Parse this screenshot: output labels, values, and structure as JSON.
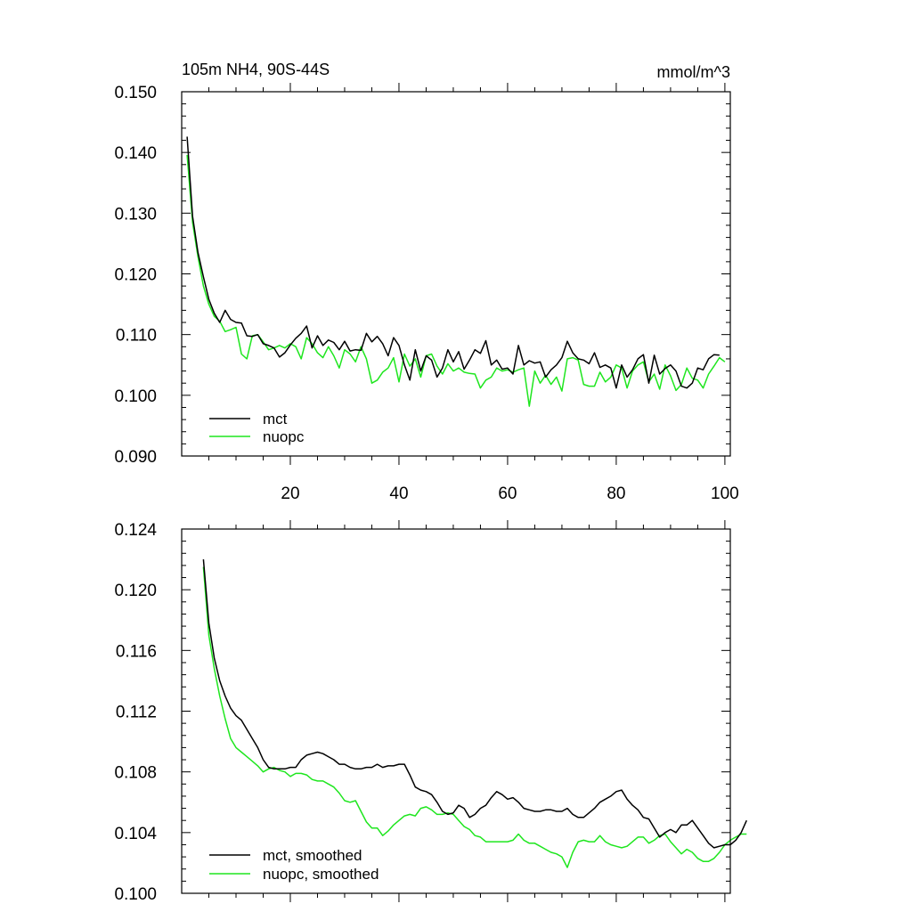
{
  "chart_data": [
    {
      "type": "line",
      "title": "105m NH4, 90S-44S",
      "units": "mmol/m^3",
      "xlabel": "",
      "ylabel": "",
      "xlim": [
        0,
        101
      ],
      "ylim": [
        0.09,
        0.15
      ],
      "xticks": [
        20,
        40,
        60,
        80,
        100
      ],
      "xtick_labels": [
        "20",
        "40",
        "60",
        "80",
        "100"
      ],
      "yticks": [
        0.09,
        0.1,
        0.11,
        0.12,
        0.13,
        0.14,
        0.15
      ],
      "ytick_labels": [
        "0.090",
        "0.100",
        "0.110",
        "0.120",
        "0.130",
        "0.140",
        "0.150"
      ],
      "legend_position": "bottom-left",
      "series": [
        {
          "name": "mct",
          "color": "#000000",
          "x_start": 1,
          "values": [
            0.1426,
            0.1295,
            0.1235,
            0.1195,
            0.1158,
            0.1135,
            0.112,
            0.114,
            0.1125,
            0.112,
            0.1119,
            0.1098,
            0.1097,
            0.11,
            0.1085,
            0.1082,
            0.1078,
            0.1063,
            0.107,
            0.1083,
            0.1094,
            0.1102,
            0.1114,
            0.1078,
            0.1098,
            0.1082,
            0.1091,
            0.1087,
            0.1075,
            0.1089,
            0.1073,
            0.1075,
            0.1074,
            0.1102,
            0.1088,
            0.1097,
            0.1085,
            0.1065,
            0.1095,
            0.1082,
            0.105,
            0.1025,
            0.1075,
            0.104,
            0.1065,
            0.1058,
            0.103,
            0.1045,
            0.1075,
            0.1055,
            0.1072,
            0.1043,
            0.1058,
            0.1075,
            0.1069,
            0.109,
            0.105,
            0.1058,
            0.1043,
            0.1045,
            0.1035,
            0.1082,
            0.105,
            0.1057,
            0.1053,
            0.1055,
            0.103,
            0.1042,
            0.105,
            0.1062,
            0.1089,
            0.107,
            0.106,
            0.1058,
            0.1052,
            0.107,
            0.1046,
            0.105,
            0.1045,
            0.1012,
            0.105,
            0.103,
            0.1042,
            0.106,
            0.1067,
            0.102,
            0.1066,
            0.1035,
            0.1044,
            0.105,
            0.104,
            0.1015,
            0.1012,
            0.102,
            0.1045,
            0.1042,
            0.106,
            0.1067,
            0.1066
          ]
        },
        {
          "name": "nuopc",
          "color": "#1ee61e",
          "x_start": 1,
          "values": [
            0.1396,
            0.1285,
            0.1228,
            0.118,
            0.115,
            0.113,
            0.1122,
            0.1105,
            0.1108,
            0.1112,
            0.1068,
            0.106,
            0.1098,
            0.11,
            0.1088,
            0.1075,
            0.1078,
            0.1082,
            0.1078,
            0.1085,
            0.108,
            0.106,
            0.1095,
            0.1085,
            0.107,
            0.1062,
            0.108,
            0.1065,
            0.1045,
            0.1075,
            0.1068,
            0.1055,
            0.108,
            0.106,
            0.102,
            0.1025,
            0.1038,
            0.1045,
            0.1062,
            0.1022,
            0.1068,
            0.1048,
            0.106,
            0.103,
            0.1065,
            0.1068,
            0.1048,
            0.1035,
            0.1052,
            0.104,
            0.1045,
            0.1038,
            0.1036,
            0.1035,
            0.1012,
            0.1025,
            0.103,
            0.1045,
            0.104,
            0.1042,
            0.1038,
            0.1042,
            0.1045,
            0.0982,
            0.104,
            0.102,
            0.1033,
            0.1018,
            0.103,
            0.1007,
            0.106,
            0.1062,
            0.1058,
            0.1018,
            0.1015,
            0.1015,
            0.1038,
            0.1022,
            0.103,
            0.105,
            0.1045,
            0.1012,
            0.104,
            0.105,
            0.1055,
            0.1022,
            0.1035,
            0.101,
            0.105,
            0.1032,
            0.1008,
            0.1018,
            0.1045,
            0.1028,
            0.1025,
            0.1012,
            0.1035,
            0.1048,
            0.1062,
            0.1055
          ]
        }
      ]
    },
    {
      "type": "line",
      "title": "",
      "xlabel": "",
      "ylabel": "",
      "xlim": [
        0,
        101
      ],
      "ylim": [
        0.1,
        0.124
      ],
      "xticks": [
        20,
        40,
        60,
        80,
        100
      ],
      "xtick_labels": [],
      "yticks": [
        0.1,
        0.104,
        0.108,
        0.112,
        0.116,
        0.12,
        0.124
      ],
      "ytick_labels": [
        "0.100",
        "0.104",
        "0.108",
        "0.112",
        "0.116",
        "0.120",
        "0.124"
      ],
      "legend_position": "bottom-left",
      "series": [
        {
          "name": "mct, smoothed",
          "color": "#000000",
          "x_start": 4,
          "values": [
            0.122,
            0.1178,
            0.1155,
            0.114,
            0.113,
            0.1122,
            0.1117,
            0.1114,
            0.1108,
            0.1102,
            0.1096,
            0.1088,
            0.1083,
            0.1082,
            0.1082,
            0.1082,
            0.1083,
            0.1083,
            0.1088,
            0.1091,
            0.1092,
            0.1093,
            0.1092,
            0.109,
            0.1088,
            0.1085,
            0.1085,
            0.1083,
            0.1082,
            0.1082,
            0.1083,
            0.1083,
            0.1085,
            0.1083,
            0.1084,
            0.1084,
            0.1085,
            0.1085,
            0.1078,
            0.107,
            0.1068,
            0.1067,
            0.1065,
            0.106,
            0.1054,
            0.1052,
            0.1053,
            0.1058,
            0.1056,
            0.105,
            0.1052,
            0.1056,
            0.1058,
            0.1063,
            0.1067,
            0.1065,
            0.1062,
            0.1063,
            0.106,
            0.1056,
            0.1055,
            0.1054,
            0.1054,
            0.1055,
            0.1055,
            0.1054,
            0.1054,
            0.1056,
            0.1052,
            0.105,
            0.105,
            0.1053,
            0.1056,
            0.106,
            0.1062,
            0.1064,
            0.1067,
            0.1068,
            0.1062,
            0.1058,
            0.1055,
            0.105,
            0.1049,
            0.1043,
            0.1037,
            0.104,
            0.1042,
            0.104,
            0.1045,
            0.1045,
            0.1048,
            0.1043,
            0.1038,
            0.1033,
            0.103,
            0.1031,
            0.1032,
            0.1032,
            0.1035,
            0.104,
            0.1048
          ]
        },
        {
          "name": "nuopc, smoothed",
          "color": "#1ee61e",
          "x_start": 4,
          "values": [
            0.1215,
            0.117,
            0.1148,
            0.113,
            0.1115,
            0.1102,
            0.1096,
            0.1093,
            0.109,
            0.1087,
            0.1084,
            0.108,
            0.1082,
            0.1083,
            0.1081,
            0.108,
            0.1077,
            0.1079,
            0.1079,
            0.1078,
            0.1075,
            0.1074,
            0.1074,
            0.1072,
            0.107,
            0.1066,
            0.1061,
            0.106,
            0.1061,
            0.1054,
            0.1047,
            0.1043,
            0.1043,
            0.1038,
            0.1041,
            0.1045,
            0.1048,
            0.1051,
            0.1052,
            0.1051,
            0.1056,
            0.1057,
            0.1055,
            0.1052,
            0.1052,
            0.1053,
            0.1052,
            0.1048,
            0.1044,
            0.1042,
            0.1038,
            0.1037,
            0.1034,
            0.1034,
            0.1034,
            0.1034,
            0.1034,
            0.1035,
            0.1039,
            0.1035,
            0.1033,
            0.1033,
            0.1031,
            0.1029,
            0.1027,
            0.1026,
            0.1024,
            0.1017,
            0.1027,
            0.1034,
            0.1035,
            0.1034,
            0.1034,
            0.1038,
            0.1034,
            0.1032,
            0.1031,
            0.103,
            0.1031,
            0.1034,
            0.1037,
            0.1037,
            0.1033,
            0.1035,
            0.1038,
            0.1039,
            0.1034,
            0.103,
            0.1026,
            0.1029,
            0.1027,
            0.1023,
            0.1021,
            0.1021,
            0.1023,
            0.1027,
            0.1032,
            0.1035,
            0.1037,
            0.1039,
            0.1039
          ]
        }
      ]
    }
  ]
}
